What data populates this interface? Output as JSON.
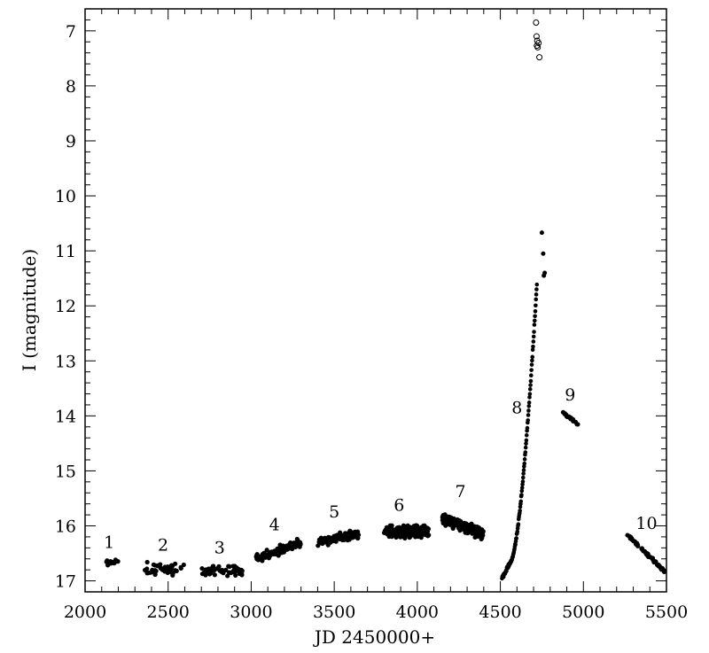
{
  "chart_data": {
    "type": "scatter",
    "title": "",
    "xlabel": "JD 2450000+",
    "ylabel": "I (magnitude)",
    "xlim": [
      2000,
      5500
    ],
    "ylim": [
      17.2,
      6.6
    ],
    "y_inverted": true,
    "grid": false,
    "xticks": [
      2000,
      2500,
      3000,
      3500,
      4000,
      4500,
      5000,
      5500
    ],
    "yticks": [
      7,
      8,
      9,
      10,
      11,
      12,
      13,
      14,
      15,
      16,
      17
    ],
    "segments": [
      {
        "label": "1",
        "label_x": 2145,
        "label_y": 16.4,
        "x_range": [
          2120,
          2200
        ],
        "y_center": 16.65,
        "spread": 0.06,
        "n": 12
      },
      {
        "label": "2",
        "label_x": 2470,
        "label_y": 16.45,
        "x_range": [
          2350,
          2600
        ],
        "y_center": 16.78,
        "spread": 0.1,
        "n": 50
      },
      {
        "label": "3",
        "label_x": 2810,
        "label_y": 16.5,
        "x_range": [
          2700,
          2950
        ],
        "y_center": 16.82,
        "spread": 0.08,
        "n": 55
      },
      {
        "label": "4",
        "label_x": 3140,
        "label_y": 16.08,
        "x_range": [
          3030,
          3300
        ],
        "y_center_start": 16.6,
        "y_center_end": 16.3,
        "spread": 0.07,
        "n": 120
      },
      {
        "label": "5",
        "label_x": 3500,
        "label_y": 15.85,
        "x_range": [
          3400,
          3650
        ],
        "y_center_start": 16.3,
        "y_center_end": 16.15,
        "spread": 0.07,
        "n": 100
      },
      {
        "label": "6",
        "label_x": 3890,
        "label_y": 15.73,
        "x_range": [
          3800,
          4070
        ],
        "y_center": 16.1,
        "spread": 0.09,
        "n": 220
      },
      {
        "label": "7",
        "label_x": 4260,
        "label_y": 15.48,
        "x_range": [
          4150,
          4400
        ],
        "y_center_start": 15.85,
        "y_center_end": 16.15,
        "spread": 0.1,
        "n": 180
      },
      {
        "label": "8",
        "label_x": 4600,
        "label_y": 13.95,
        "x_range": [
          4510,
          4720
        ],
        "type": "rise",
        "n": 110
      },
      {
        "label": "9",
        "label_x": 4920,
        "label_y": 13.72,
        "x_range": [
          4870,
          4970
        ],
        "y_center_start": 13.93,
        "y_center_end": 14.15,
        "spread": 0.02,
        "n": 18
      },
      {
        "label": "10",
        "label_x": 5380,
        "label_y": 16.06,
        "x_range": [
          5260,
          5490
        ],
        "y_center_start": 16.15,
        "y_center_end": 16.83,
        "spread": 0.02,
        "n": 65
      }
    ],
    "open_points": [
      {
        "x": 4715,
        "y": 6.85
      },
      {
        "x": 4718,
        "y": 7.1
      },
      {
        "x": 4722,
        "y": 7.18
      },
      {
        "x": 4720,
        "y": 7.27
      },
      {
        "x": 4730,
        "y": 7.22
      },
      {
        "x": 4725,
        "y": 7.3
      },
      {
        "x": 4735,
        "y": 7.48
      }
    ],
    "late_filled_points": [
      {
        "x": 4750,
        "y": 10.67
      },
      {
        "x": 4758,
        "y": 11.05
      },
      {
        "x": 4767,
        "y": 11.4
      },
      {
        "x": 4762,
        "y": 11.45
      }
    ]
  }
}
